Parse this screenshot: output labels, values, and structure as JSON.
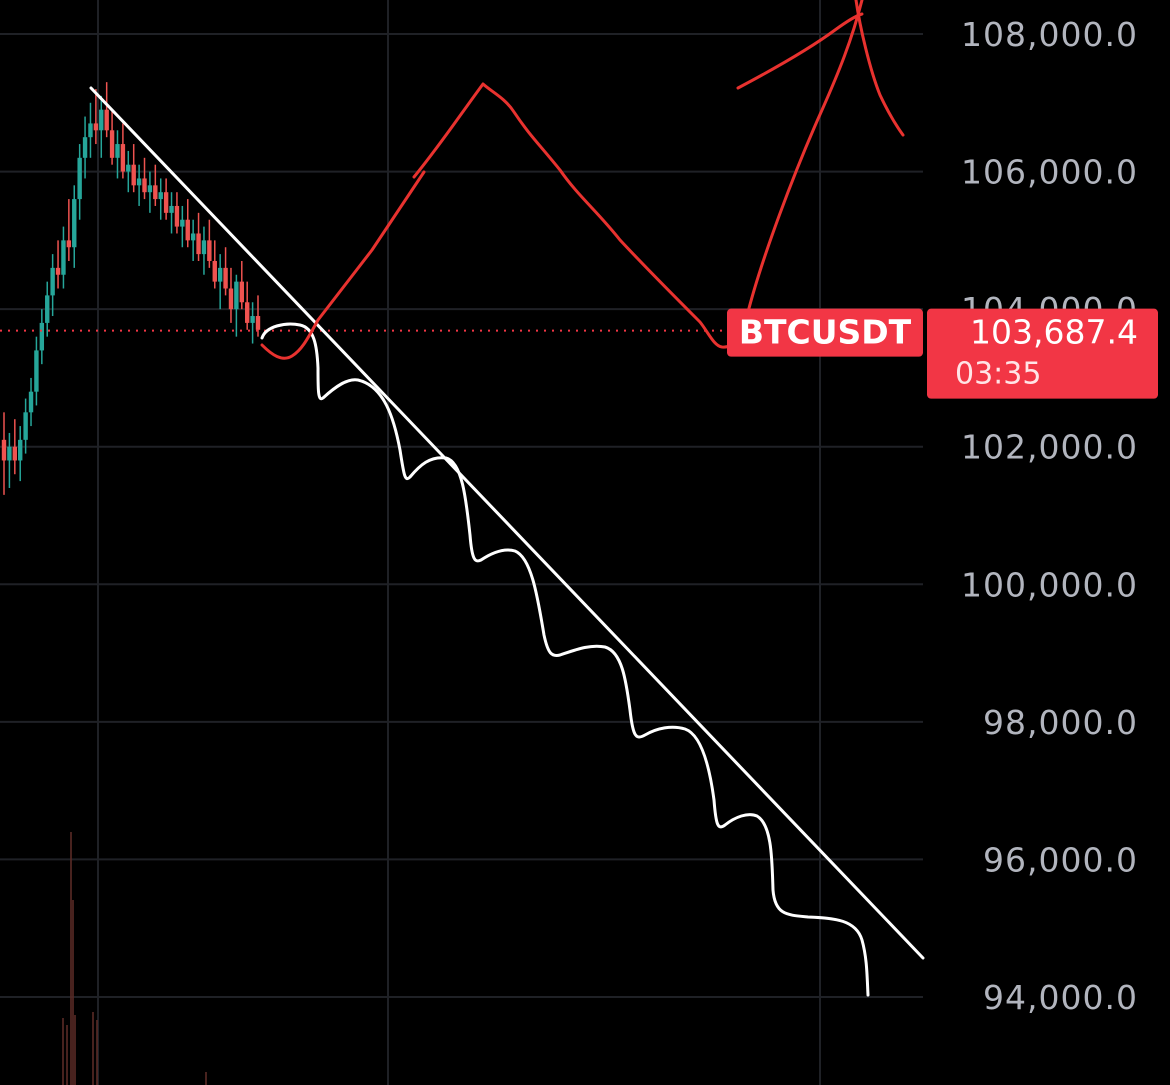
{
  "chart_data": {
    "type": "candlestick",
    "symbol": "BTCUSDT",
    "last_price": "103,687.4",
    "last_price_value": 103687.4,
    "countdown": "03:35",
    "ylim": [
      93600,
      108300
    ],
    "y_ticks": [
      {
        "value": 108000,
        "label": "108,000.0"
      },
      {
        "value": 106000,
        "label": "106,000.0"
      },
      {
        "value": 104000,
        "label": "104,000.0"
      },
      {
        "value": 102000,
        "label": "102,000.0"
      },
      {
        "value": 100000,
        "label": "100,000.0"
      },
      {
        "value": 98000,
        "label": "98,000.0"
      },
      {
        "value": 96000,
        "label": "96,000.0"
      },
      {
        "value": 94000,
        "label": "94,000.0"
      }
    ],
    "grid": true,
    "colors": {
      "background": "#000000",
      "grid": "#1f2126",
      "up": "#26a69a",
      "down": "#ef5350",
      "price_line": "#f23645",
      "symbol_tag": "#f23645",
      "price_tag": "#f23645",
      "annotation_red": "#e8322f",
      "annotation_white": "#ffffff",
      "axis_text": "#b2b5be"
    },
    "candles_note_ohlc_approx": [
      [
        102100,
        102500,
        101300,
        101800
      ],
      [
        101800,
        102200,
        101400,
        102000
      ],
      [
        102000,
        102400,
        101600,
        101800
      ],
      [
        101800,
        102300,
        101500,
        102100
      ],
      [
        102100,
        102700,
        101900,
        102500
      ],
      [
        102500,
        103000,
        102300,
        102800
      ],
      [
        102800,
        103600,
        102600,
        103400
      ],
      [
        103400,
        104000,
        103200,
        103800
      ],
      [
        103800,
        104400,
        103600,
        104200
      ],
      [
        104200,
        104800,
        103900,
        104600
      ],
      [
        104600,
        105000,
        104300,
        104500
      ],
      [
        104500,
        105200,
        104300,
        105000
      ],
      [
        105000,
        105600,
        104700,
        104900
      ],
      [
        104900,
        105800,
        104600,
        105600
      ],
      [
        105600,
        106400,
        105300,
        106200
      ],
      [
        106200,
        106800,
        105900,
        106500
      ],
      [
        106500,
        107000,
        106200,
        106700
      ],
      [
        106700,
        107200,
        106400,
        106600
      ],
      [
        106600,
        107100,
        106200,
        106900
      ],
      [
        106900,
        107300,
        106500,
        106600
      ],
      [
        106600,
        106900,
        106100,
        106200
      ],
      [
        106200,
        106600,
        105900,
        106400
      ],
      [
        106400,
        106700,
        105900,
        106000
      ],
      [
        106000,
        106300,
        105700,
        106100
      ],
      [
        106100,
        106400,
        105700,
        105800
      ],
      [
        105800,
        106100,
        105500,
        105900
      ],
      [
        105900,
        106200,
        105600,
        105700
      ],
      [
        105700,
        106000,
        105400,
        105800
      ],
      [
        105800,
        106100,
        105500,
        105600
      ],
      [
        105600,
        105900,
        105300,
        105700
      ],
      [
        105700,
        105900,
        105300,
        105400
      ],
      [
        105400,
        105700,
        105100,
        105500
      ],
      [
        105500,
        105700,
        105100,
        105200
      ],
      [
        105200,
        105500,
        104900,
        105300
      ],
      [
        105300,
        105600,
        104900,
        105000
      ],
      [
        105000,
        105300,
        104700,
        105100
      ],
      [
        105100,
        105400,
        104700,
        104800
      ],
      [
        104800,
        105200,
        104500,
        105000
      ],
      [
        105000,
        105300,
        104600,
        104700
      ],
      [
        104700,
        105000,
        104300,
        104400
      ],
      [
        104400,
        104800,
        104000,
        104600
      ],
      [
        104600,
        104900,
        104200,
        104300
      ],
      [
        104300,
        104600,
        103800,
        104000
      ],
      [
        104000,
        104500,
        103600,
        104400
      ],
      [
        104400,
        104700,
        104000,
        104100
      ],
      [
        104100,
        104400,
        103700,
        103800
      ],
      [
        103800,
        104100,
        103500,
        103900
      ],
      [
        103900,
        104200,
        103600,
        103700
      ]
    ],
    "volume_note": "faint volume bars at bottom left"
  }
}
